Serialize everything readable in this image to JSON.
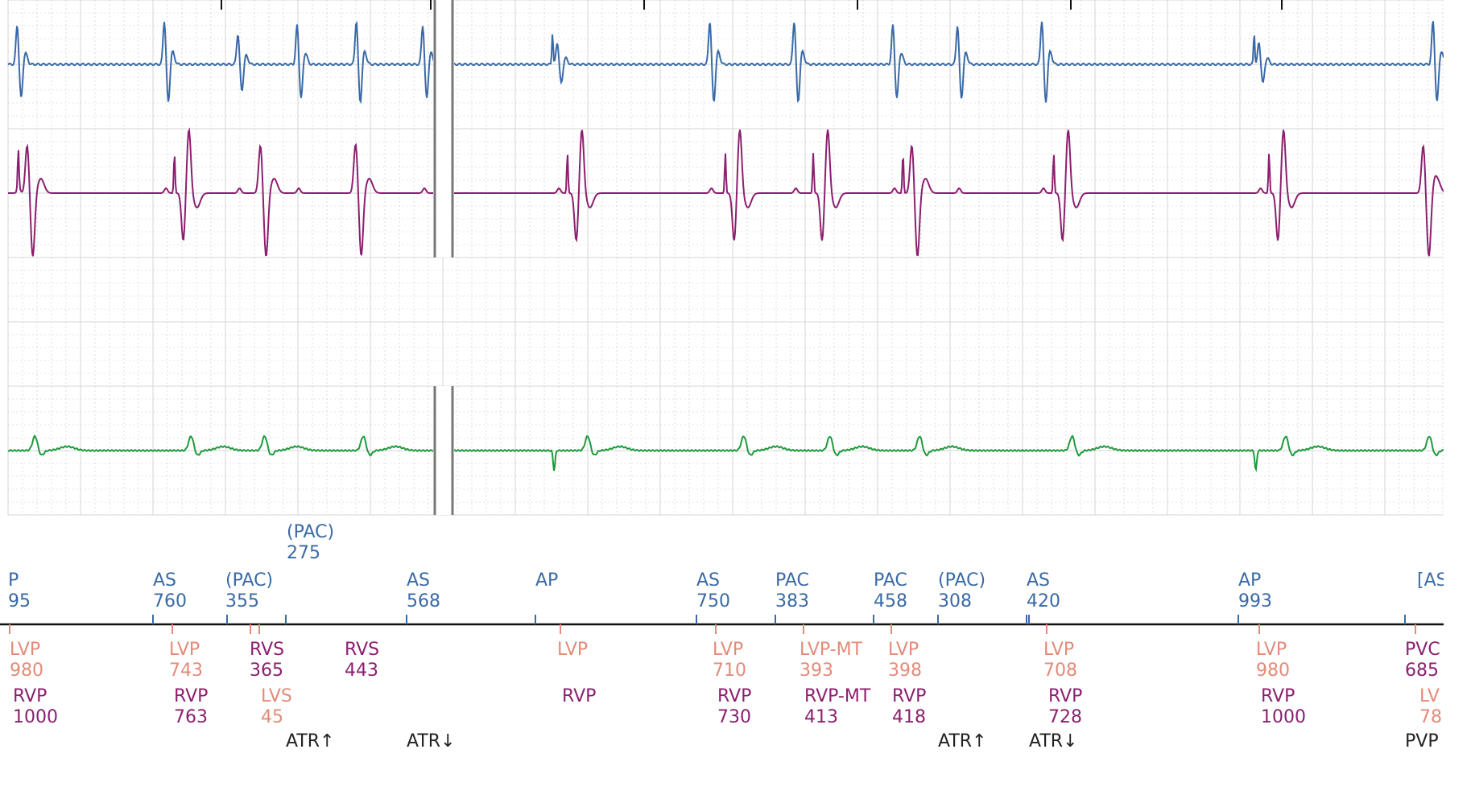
{
  "chart_data": {
    "type": "line",
    "description_colors": {
      "atrial": "#3a6aa6",
      "rv": "#8c1f6f",
      "lv": "#e58a78",
      "sense_black": "#222222",
      "surface": "#1e9a3c",
      "grid_major": "#d6d6d6",
      "grid_minor": "#c9c9c9",
      "break_bar": "#777777"
    },
    "x_range_ms": [
      0,
      8000
    ],
    "break_after_ms": 2400,
    "break_resume_ms": 2520,
    "channels": [
      {
        "key": "atrial",
        "color": "#3a6aa6"
      },
      {
        "key": "ventricular",
        "color": "#8c1f6f"
      },
      {
        "key": "blank",
        "color": "#ffffff"
      },
      {
        "key": "surface",
        "color": "#1e9a3c"
      }
    ],
    "atrial_beats": [
      {
        "t": 60,
        "amp": 0.9
      },
      {
        "t": 880,
        "amp": 1.0
      },
      {
        "t": 1290,
        "amp": 0.7
      },
      {
        "t": 1620,
        "amp": 0.9
      },
      {
        "t": 1950,
        "amp": 1.0
      },
      {
        "t": 2320,
        "amp": 0.9
      },
      {
        "t": 3070,
        "amp": 0.5,
        "paced": true
      },
      {
        "t": 3920,
        "amp": 1.0
      },
      {
        "t": 4390,
        "amp": 1.0
      },
      {
        "t": 4940,
        "amp": 0.9
      },
      {
        "t": 5300,
        "amp": 0.9
      },
      {
        "t": 5770,
        "amp": 1.0
      },
      {
        "t": 6980,
        "amp": 0.5,
        "paced": true
      },
      {
        "t": 7950,
        "amp": 1.0
      }
    ],
    "ventricular_beats": [
      {
        "t": 120,
        "paced": true,
        "polarity": 1
      },
      {
        "t": 990,
        "paced": true,
        "polarity": -1
      },
      {
        "t": 1420,
        "paced": false,
        "polarity": 1
      },
      {
        "t": 1950,
        "paced": false,
        "polarity": 1
      },
      {
        "t": 3180,
        "paced": true,
        "polarity": -1
      },
      {
        "t": 4060,
        "paced": true,
        "polarity": -1
      },
      {
        "t": 4550,
        "paced": true,
        "polarity": -1
      },
      {
        "t": 5050,
        "paced": true,
        "polarity": 1
      },
      {
        "t": 5890,
        "paced": true,
        "polarity": -1
      },
      {
        "t": 7090,
        "paced": true,
        "polarity": -1
      },
      {
        "t": 7900,
        "paced": false,
        "polarity": 1
      }
    ],
    "surface_beats": [
      {
        "t": 150
      },
      {
        "t": 1020
      },
      {
        "t": 1430
      },
      {
        "t": 1980
      },
      {
        "t": 3230
      },
      {
        "t": 4100
      },
      {
        "t": 4580
      },
      {
        "t": 5080
      },
      {
        "t": 5930
      },
      {
        "t": 7120
      },
      {
        "t": 7920
      }
    ],
    "marker_rows": {
      "atrial_top": [
        {
          "x": 1580,
          "label": "(PAC)",
          "value": "275"
        }
      ],
      "atrial": [
        {
          "x": 10,
          "label": "P",
          "value": "95"
        },
        {
          "x": 190,
          "label": "AS",
          "value": "760"
        },
        {
          "x": 280,
          "label": "(PAC)",
          "value": "355"
        },
        {
          "x": 505,
          "label": "AS",
          "value": "568"
        },
        {
          "x": 665,
          "label": "AP",
          "value": ""
        },
        {
          "x": 865,
          "label": "AS",
          "value": "750"
        },
        {
          "x": 963,
          "label": "PAC",
          "value": "383"
        },
        {
          "x": 1085,
          "label": "PAC",
          "value": "458"
        },
        {
          "x": 1165,
          "label": "(PAC)",
          "value": "308"
        },
        {
          "x": 1275,
          "label": "AS",
          "value": "420"
        },
        {
          "x": 1538,
          "label": "AP",
          "value": "993"
        },
        {
          "x": 1760,
          "label": "[AS",
          "value": ""
        }
      ],
      "lv": [
        {
          "x": 12,
          "label": "LVP",
          "value": "980"
        },
        {
          "x": 210,
          "label": "LVP",
          "value": "743"
        },
        {
          "x": 692,
          "label": "LVP",
          "value": ""
        },
        {
          "x": 885,
          "label": "LVP",
          "value": "710"
        },
        {
          "x": 993,
          "label": "LVP-MT",
          "value": "393"
        },
        {
          "x": 1103,
          "label": "LVP",
          "value": "398"
        },
        {
          "x": 1296,
          "label": "LVP",
          "value": "708"
        },
        {
          "x": 1560,
          "label": "LVP",
          "value": "980"
        },
        {
          "x": 1745,
          "label": "PVC",
          "value": "685"
        }
      ],
      "rv": [
        {
          "x": 310,
          "label": "RVS",
          "value": "365"
        },
        {
          "x": 428,
          "label": "RVS",
          "value": "443"
        }
      ],
      "rvp": [
        {
          "x": 16,
          "label": "RVP",
          "value": "1000"
        },
        {
          "x": 216,
          "label": "RVP",
          "value": "763"
        },
        {
          "x": 698,
          "label": "RVP",
          "value": ""
        },
        {
          "x": 891,
          "label": "RVP",
          "value": "730"
        },
        {
          "x": 999,
          "label": "RVP-MT",
          "value": "413"
        },
        {
          "x": 1108,
          "label": "RVP",
          "value": "418"
        },
        {
          "x": 1302,
          "label": "RVP",
          "value": "728"
        },
        {
          "x": 1566,
          "label": "RVP",
          "value": "1000"
        }
      ],
      "lvs": [
        {
          "x": 324,
          "label": "LVS",
          "value": "45"
        },
        {
          "x": 1763,
          "label": "LV",
          "value": "78"
        }
      ],
      "atr": [
        {
          "x": 355,
          "label": "ATR↑"
        },
        {
          "x": 505,
          "label": "ATR↓"
        },
        {
          "x": 1165,
          "label": "ATR↑"
        },
        {
          "x": 1278,
          "label": "ATR↓"
        },
        {
          "x": 1745,
          "label": "PVP"
        }
      ]
    },
    "top_ticks": [
      275,
      535,
      800,
      1065,
      1330,
      1592
    ],
    "atrial_ticks": [
      190,
      282,
      355,
      505,
      665,
      865,
      963,
      1085,
      1165,
      1275,
      1278,
      1538,
      1745
    ],
    "ventricular_ticks": [
      12,
      214,
      311,
      322,
      696,
      889,
      998,
      1107,
      1300,
      1564,
      1758
    ]
  }
}
